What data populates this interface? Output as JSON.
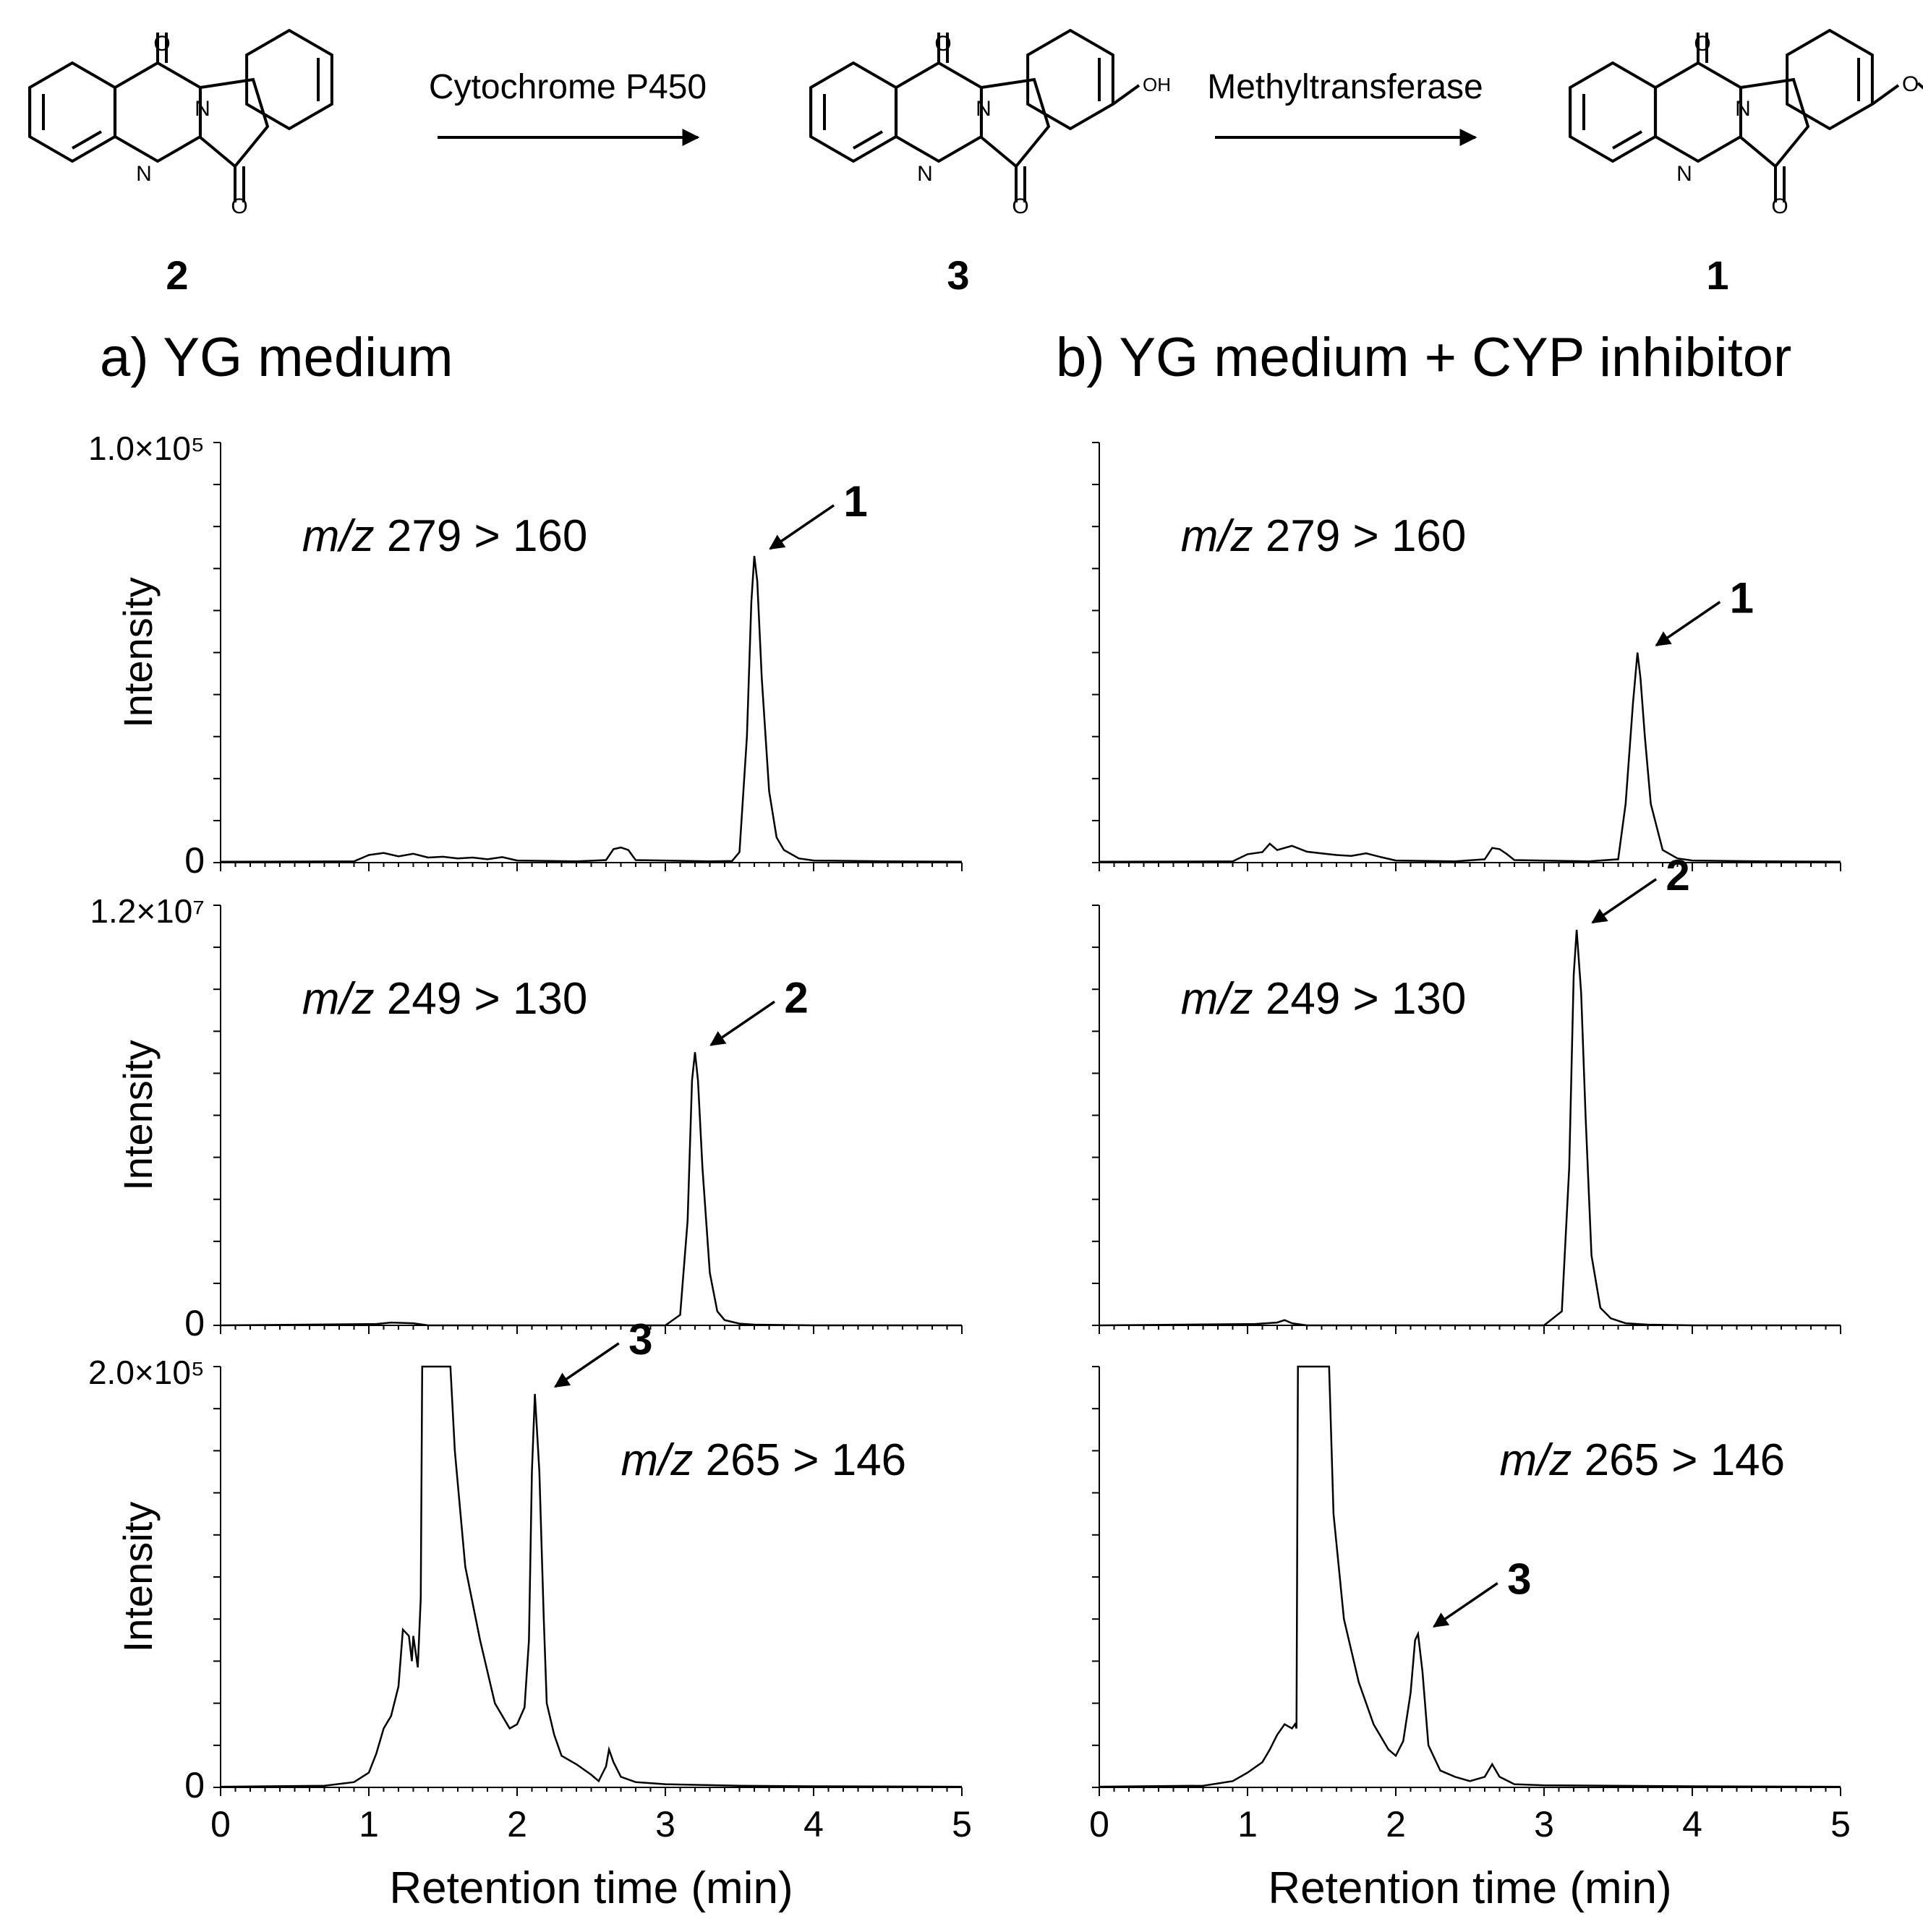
{
  "scheme": {
    "compounds": [
      {
        "id": "2",
        "label": "2",
        "substituent": ""
      },
      {
        "id": "3",
        "label": "3",
        "substituent": "OH"
      },
      {
        "id": "1",
        "label": "1",
        "substituent": ""
      }
    ],
    "arrows": [
      {
        "label": "Cytochrome P450"
      },
      {
        "label": "Methyltransferase"
      }
    ],
    "atom_labels": {
      "oxygen": "O",
      "nitrogen": "N"
    }
  },
  "panels": [
    {
      "id": "a",
      "title": "a) YG medium"
    },
    {
      "id": "b",
      "title": "b) YG medium + CYP inhibitor"
    }
  ],
  "chart_data": [
    {
      "type": "line",
      "panel": "a",
      "row": 0,
      "title": "m/z 279 > 160",
      "mz_italic": "m/z",
      "transition": "279 > 160",
      "ylabel": "Intensity",
      "xlabel": "",
      "ymax_label": "1.0×10⁵",
      "ymin_label": "0",
      "ylim": [
        0,
        100000
      ],
      "xlim": [
        0,
        5
      ],
      "annotation": {
        "label": "1",
        "x": 3.6,
        "y": 73000
      },
      "series": [
        {
          "name": "m/z 279 > 160",
          "x": [
            0,
            0.9,
            1.0,
            1.1,
            1.2,
            1.3,
            1.4,
            1.5,
            1.6,
            1.7,
            1.8,
            1.9,
            2.0,
            2.4,
            2.6,
            2.65,
            2.7,
            2.75,
            2.8,
            3.3,
            3.45,
            3.5,
            3.55,
            3.58,
            3.6,
            3.62,
            3.65,
            3.7,
            3.75,
            3.8,
            3.9,
            4.0,
            4.5,
            5.0
          ],
          "y": [
            200,
            300,
            1800,
            2300,
            1500,
            2100,
            1200,
            1400,
            1000,
            1200,
            800,
            1300,
            500,
            300,
            600,
            3200,
            3600,
            3000,
            600,
            300,
            400,
            2500,
            30000,
            62000,
            73000,
            67000,
            44000,
            17000,
            6000,
            3000,
            1000,
            500,
            300,
            200
          ]
        }
      ]
    },
    {
      "type": "line",
      "panel": "b",
      "row": 0,
      "title": "m/z 279 > 160",
      "mz_italic": "m/z",
      "transition": "279 > 160",
      "ylabel": "",
      "xlabel": "",
      "ymax_label": "",
      "ymin_label": "",
      "ylim": [
        0,
        100000
      ],
      "xlim": [
        0,
        5
      ],
      "annotation": {
        "label": "1",
        "x": 3.65,
        "y": 50000
      },
      "series": [
        {
          "name": "m/z 279 > 160",
          "x": [
            0,
            0.9,
            1.0,
            1.1,
            1.15,
            1.2,
            1.3,
            1.4,
            1.5,
            1.6,
            1.7,
            1.8,
            1.9,
            2.0,
            2.4,
            2.6,
            2.65,
            2.7,
            2.75,
            2.8,
            3.3,
            3.5,
            3.55,
            3.6,
            3.63,
            3.65,
            3.68,
            3.72,
            3.8,
            3.9,
            4.0,
            4.5,
            5.0
          ],
          "y": [
            200,
            300,
            2000,
            2500,
            4500,
            3000,
            4000,
            2600,
            2200,
            1800,
            1600,
            2200,
            1300,
            500,
            300,
            800,
            3500,
            3200,
            2000,
            600,
            300,
            800,
            14000,
            38000,
            50000,
            44000,
            30000,
            14000,
            3000,
            1000,
            500,
            300,
            200
          ]
        }
      ]
    },
    {
      "type": "line",
      "panel": "a",
      "row": 1,
      "title": "m/z 249 > 130",
      "mz_italic": "m/z",
      "transition": "249 > 130",
      "ylabel": "Intensity",
      "xlabel": "",
      "ymax_label": "1.2×10⁷",
      "ymin_label": "0",
      "ylim": [
        0,
        12000000
      ],
      "xlim": [
        0,
        5
      ],
      "annotation": {
        "label": "2",
        "x": 3.2,
        "y": 7800000
      },
      "series": [
        {
          "name": "m/z 249 > 130",
          "x": [
            0,
            1.05,
            1.15,
            1.3,
            1.4,
            3.0,
            3.1,
            3.15,
            3.18,
            3.2,
            3.22,
            3.25,
            3.3,
            3.35,
            3.4,
            3.5,
            3.6,
            4.0,
            5.0
          ],
          "y": [
            0,
            40000,
            80000,
            60000,
            0,
            0,
            300000,
            3000000,
            7000000,
            7800000,
            7000000,
            4500000,
            1500000,
            400000,
            150000,
            50000,
            20000,
            0,
            0
          ]
        }
      ]
    },
    {
      "type": "line",
      "panel": "b",
      "row": 1,
      "title": "m/z 249 > 130",
      "mz_italic": "m/z",
      "transition": "249 > 130",
      "ylabel": "",
      "xlabel": "",
      "ymax_label": "",
      "ymin_label": "",
      "ylim": [
        0,
        12000000
      ],
      "xlim": [
        0,
        5
      ],
      "annotation": {
        "label": "2",
        "x": 3.22,
        "y": 11300000
      },
      "series": [
        {
          "name": "m/z 249 > 130",
          "x": [
            0,
            1.05,
            1.2,
            1.25,
            1.3,
            1.4,
            3.0,
            3.12,
            3.17,
            3.2,
            3.22,
            3.25,
            3.28,
            3.32,
            3.38,
            3.45,
            3.55,
            3.7,
            4.0,
            5.0
          ],
          "y": [
            0,
            40000,
            80000,
            150000,
            60000,
            0,
            0,
            400000,
            4500000,
            10000000,
            11300000,
            9500000,
            6000000,
            2000000,
            500000,
            200000,
            60000,
            20000,
            0,
            0
          ]
        }
      ]
    },
    {
      "type": "line",
      "panel": "a",
      "row": 2,
      "title": "m/z 265 > 146",
      "mz_italic": "m/z",
      "transition": "265 > 146",
      "ylabel": "Intensity",
      "xlabel": "Retention time (min)",
      "ymax_label": "2.0×10⁵",
      "ymin_label": "0",
      "ylim": [
        0,
        200000
      ],
      "xlim": [
        0,
        5
      ],
      "xticks": [
        0,
        1,
        2,
        3,
        4,
        5
      ],
      "annotation": {
        "label": "3",
        "x": 2.15,
        "y": 187000
      },
      "series": [
        {
          "name": "m/z 265 > 146",
          "x": [
            0,
            0.7,
            0.9,
            1.0,
            1.05,
            1.1,
            1.15,
            1.2,
            1.23,
            1.27,
            1.29,
            1.3,
            1.33,
            1.35,
            1.36,
            1.55,
            1.58,
            1.65,
            1.75,
            1.85,
            1.95,
            2.0,
            2.05,
            2.08,
            2.1,
            2.12,
            2.15,
            2.18,
            2.2,
            2.25,
            2.3,
            2.4,
            2.5,
            2.55,
            2.6,
            2.62,
            2.65,
            2.7,
            2.8,
            3.0,
            3.5,
            4.0,
            5.0
          ],
          "y": [
            300,
            800,
            2500,
            7000,
            16000,
            28000,
            34000,
            48000,
            75000,
            72000,
            60000,
            72000,
            57000,
            90000,
            200000,
            200000,
            160000,
            105000,
            70000,
            40000,
            28000,
            30000,
            38000,
            70000,
            150000,
            187000,
            150000,
            80000,
            40000,
            25000,
            15000,
            11000,
            6000,
            3000,
            10000,
            18000,
            12000,
            5000,
            2500,
            1500,
            800,
            500,
            300
          ]
        }
      ]
    },
    {
      "type": "line",
      "panel": "b",
      "row": 2,
      "title": "m/z 265 > 146",
      "mz_italic": "m/z",
      "transition": "265 > 146",
      "ylabel": "",
      "xlabel": "Retention time (min)",
      "ymax_label": "",
      "ymin_label": "",
      "ylim": [
        0,
        200000
      ],
      "xlim": [
        0,
        5
      ],
      "xticks": [
        0,
        1,
        2,
        3,
        4,
        5
      ],
      "annotation": {
        "label": "3",
        "x": 2.15,
        "y": 73000
      },
      "series": [
        {
          "name": "m/z 265 > 146",
          "x": [
            0,
            0.7,
            0.9,
            1.0,
            1.1,
            1.15,
            1.2,
            1.25,
            1.3,
            1.32,
            1.33,
            1.34,
            1.55,
            1.58,
            1.65,
            1.75,
            1.85,
            1.95,
            2.0,
            2.05,
            2.1,
            2.13,
            2.15,
            2.18,
            2.22,
            2.3,
            2.4,
            2.5,
            2.6,
            2.65,
            2.7,
            2.8,
            3.0,
            4.0,
            5.0
          ],
          "y": [
            300,
            800,
            3000,
            7000,
            12000,
            18000,
            25000,
            30000,
            28000,
            30000,
            28000,
            200000,
            200000,
            130000,
            80000,
            50000,
            30000,
            18000,
            15000,
            22000,
            45000,
            70000,
            73000,
            55000,
            20000,
            8000,
            5000,
            3000,
            5000,
            11000,
            5000,
            1500,
            1000,
            500,
            300
          ]
        }
      ]
    }
  ]
}
